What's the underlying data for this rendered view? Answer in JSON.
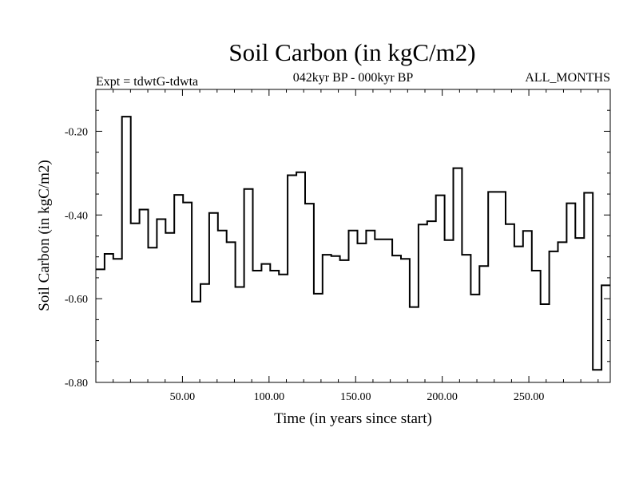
{
  "chart_data": {
    "type": "line",
    "style": "step",
    "title": "Soil Carbon (in kgC/m2)",
    "header_left": "Expt = tdwtG-tdwta",
    "header_center": "042kyr BP - 000kyr BP",
    "header_right": "ALL_MONTHS",
    "xlabel": "Time (in years since start)",
    "ylabel": "Soil Carbon (in kgC/m2)",
    "xlim": [
      0,
      297
    ],
    "ylim": [
      -0.8,
      -0.1
    ],
    "x_ticks": [
      50,
      100,
      150,
      200,
      250
    ],
    "x_tick_labels": [
      "50.00",
      "100.00",
      "150.00",
      "200.00",
      "250.00"
    ],
    "y_ticks": [
      -0.2,
      -0.4,
      -0.6,
      -0.8
    ],
    "y_tick_labels": [
      "-0.20",
      "-0.40",
      "-0.60",
      "-0.80"
    ],
    "x_minor_step": 10,
    "y_minor_step": 0.05,
    "series": [
      {
        "name": "Soil Carbon",
        "values": [
          -0.53,
          -0.493,
          -0.505,
          -0.165,
          -0.42,
          -0.387,
          -0.478,
          -0.41,
          -0.443,
          -0.352,
          -0.37,
          -0.607,
          -0.565,
          -0.395,
          -0.437,
          -0.465,
          -0.572,
          -0.338,
          -0.533,
          -0.517,
          -0.533,
          -0.542,
          -0.305,
          -0.298,
          -0.373,
          -0.588,
          -0.495,
          -0.498,
          -0.508,
          -0.437,
          -0.468,
          -0.437,
          -0.458,
          -0.458,
          -0.497,
          -0.505,
          -0.62,
          -0.423,
          -0.415,
          -0.353,
          -0.46,
          -0.288,
          -0.495,
          -0.59,
          -0.522,
          -0.345,
          -0.345,
          -0.422,
          -0.475,
          -0.438,
          -0.533,
          -0.613,
          -0.487,
          -0.465,
          -0.372,
          -0.455,
          -0.347,
          -0.77,
          -0.568
        ]
      }
    ]
  }
}
